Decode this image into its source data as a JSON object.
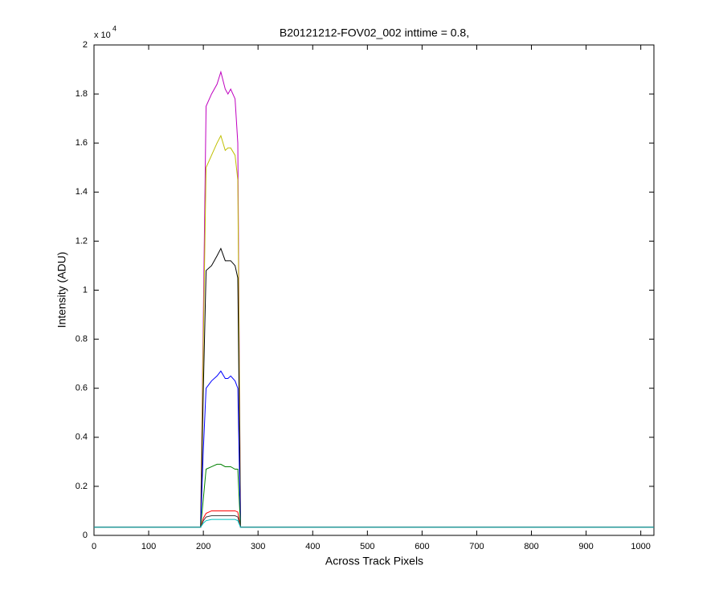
{
  "chart_data": {
    "type": "line",
    "title": "B20121212-FOV02_002 inttime = 0.8,",
    "x_label": "Across Track Pixels",
    "y_label": "Intensity (ADU)",
    "y_exponent": {
      "base": "x 10",
      "power": "4"
    },
    "x": [
      0,
      100,
      195,
      200,
      205,
      215,
      225,
      232,
      240,
      245,
      250,
      258,
      263,
      268,
      280,
      400,
      600,
      800,
      1024
    ],
    "series": [
      {
        "color": "#bf00bf",
        "values": [
          0.033,
          0.033,
          0.033,
          0.9,
          1.75,
          1.8,
          1.84,
          1.89,
          1.82,
          1.8,
          1.82,
          1.78,
          1.6,
          0.033,
          0.033,
          0.033,
          0.033,
          0.033,
          0.033
        ]
      },
      {
        "color": "#bfbf00",
        "values": [
          0.033,
          0.033,
          0.033,
          0.8,
          1.5,
          1.55,
          1.6,
          1.63,
          1.57,
          1.58,
          1.58,
          1.55,
          1.45,
          0.033,
          0.033,
          0.033,
          0.033,
          0.033,
          0.033
        ]
      },
      {
        "color": "#000000",
        "values": [
          0.033,
          0.033,
          0.033,
          0.6,
          1.08,
          1.1,
          1.14,
          1.17,
          1.12,
          1.12,
          1.12,
          1.1,
          1.05,
          0.033,
          0.033,
          0.033,
          0.033,
          0.033,
          0.033
        ]
      },
      {
        "color": "#0000ff",
        "values": [
          0.033,
          0.033,
          0.033,
          0.35,
          0.6,
          0.63,
          0.65,
          0.67,
          0.64,
          0.64,
          0.65,
          0.63,
          0.6,
          0.033,
          0.033,
          0.033,
          0.033,
          0.033,
          0.033
        ]
      },
      {
        "color": "#008000",
        "values": [
          0.033,
          0.033,
          0.033,
          0.15,
          0.27,
          0.28,
          0.29,
          0.29,
          0.28,
          0.28,
          0.28,
          0.27,
          0.27,
          0.033,
          0.033,
          0.033,
          0.033,
          0.033,
          0.033
        ]
      },
      {
        "color": "#ff0000",
        "values": [
          0.033,
          0.033,
          0.033,
          0.07,
          0.09,
          0.1,
          0.1,
          0.1,
          0.1,
          0.1,
          0.1,
          0.1,
          0.095,
          0.033,
          0.033,
          0.033,
          0.033,
          0.033,
          0.033
        ]
      },
      {
        "color": "#404040",
        "values": [
          0.033,
          0.033,
          0.033,
          0.06,
          0.075,
          0.08,
          0.08,
          0.08,
          0.08,
          0.08,
          0.08,
          0.08,
          0.075,
          0.033,
          0.033,
          0.033,
          0.033,
          0.033,
          0.033
        ]
      },
      {
        "color": "#00bfbf",
        "values": [
          0.033,
          0.033,
          0.033,
          0.05,
          0.06,
          0.065,
          0.065,
          0.065,
          0.065,
          0.065,
          0.065,
          0.065,
          0.06,
          0.033,
          0.033,
          0.033,
          0.033,
          0.033,
          0.033
        ]
      }
    ],
    "xlim": [
      0,
      1024
    ],
    "ylim": [
      0,
      2
    ],
    "xticks": [
      0,
      100,
      200,
      300,
      400,
      500,
      600,
      700,
      800,
      900,
      1000
    ],
    "yticks": [
      0,
      0.2,
      0.4,
      0.6,
      0.8,
      1,
      1.2,
      1.4,
      1.6,
      1.8,
      2
    ]
  }
}
